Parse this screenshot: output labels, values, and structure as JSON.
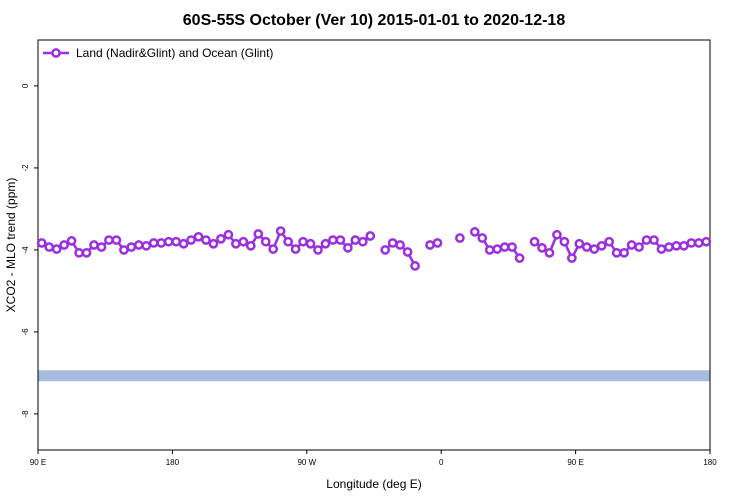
{
  "chart_data": {
    "type": "line",
    "title": "60S-55S October (Ver 10)   2015-01-01 to 2020-12-18",
    "x_label": "Longitude (deg E)",
    "y_label": "XCO2 - MLO trend (ppm)",
    "xlim": [
      90,
      540
    ],
    "xticks": [
      {
        "value": 90,
        "label": "90 E"
      },
      180,
      {
        "value": 270,
        "label": "90 W"
      },
      {
        "value": 360,
        "label": "0"
      },
      {
        "value": 450,
        "label": "90 E"
      },
      {
        "value": 540,
        "label": "180"
      }
    ],
    "ylim": [
      -8.88,
      1.12
    ],
    "yticks": [
      0,
      -2,
      -4,
      -6,
      -8
    ],
    "legend": "top-left",
    "x": [
      92.5,
      97.5,
      102.5,
      107.5,
      112.5,
      117.5,
      122.5,
      127.5,
      132.5,
      137.5,
      142.5,
      147.5,
      152.5,
      157.5,
      162.5,
      167.5,
      172.5,
      177.5,
      182.5,
      187.5,
      192.5,
      197.5,
      202.5,
      207.5,
      212.5,
      217.5,
      222.5,
      227.5,
      232.5,
      237.5,
      242.5,
      247.5,
      252.5,
      257.5,
      262.5,
      267.5,
      272.5,
      277.5,
      282.5,
      287.5,
      292.5,
      297.5,
      302.5,
      307.5,
      312.5,
      317.5,
      322.5,
      327.5,
      332.5,
      337.5,
      342.5,
      347.5,
      352.5,
      357.5,
      362.5,
      367.5,
      372.5,
      377.5,
      382.5,
      387.5,
      392.5,
      397.5,
      402.5,
      407.5,
      412.5,
      417.5,
      422.5,
      427.5,
      432.5,
      437.5,
      442.5,
      447.5,
      452.5,
      457.5,
      462.5,
      467.5,
      472.5,
      477.5,
      482.5,
      487.5,
      492.5,
      497.5,
      502.5,
      507.5,
      512.5,
      517.5,
      522.5,
      527.5,
      532.5,
      537.5
    ],
    "series": [
      {
        "name": "Land (Nadir&Glint) and Ocean (Glint)",
        "color": "#9b2ee0",
        "values": [
          -3.83,
          -3.93,
          -3.98,
          -3.88,
          -3.78,
          -4.07,
          -4.07,
          -3.88,
          -3.93,
          -3.76,
          -3.76,
          -4.0,
          -3.93,
          -3.88,
          -3.9,
          -3.83,
          -3.83,
          -3.8,
          -3.8,
          -3.85,
          -3.76,
          -3.68,
          -3.76,
          -3.85,
          -3.73,
          -3.63,
          -3.85,
          -3.8,
          -3.9,
          -3.61,
          -3.8,
          -3.98,
          -3.54,
          -3.8,
          -3.98,
          -3.8,
          -3.85,
          -4.0,
          -3.85,
          -3.76,
          -3.76,
          -3.95,
          -3.76,
          -3.8,
          -3.66,
          null,
          -4.0,
          -3.83,
          -3.88,
          -4.05,
          -4.39,
          null,
          -3.88,
          -3.83,
          null,
          null,
          -3.71,
          null,
          -3.56,
          -3.71,
          -4.0,
          -3.98,
          -3.93,
          -3.93,
          -4.2,
          null,
          -3.8,
          -3.95,
          -4.07,
          -3.63,
          -3.8,
          -4.2,
          -3.85,
          -3.93,
          -3.98,
          -3.9,
          -3.8,
          -4.07,
          -4.07,
          -3.88,
          -3.93,
          -3.76,
          -3.76,
          -3.98,
          -3.93,
          -3.9,
          -3.9,
          -3.83,
          -3.83,
          -3.8
        ]
      }
    ],
    "band": {
      "value": -7.07,
      "color": "#a7bcdd"
    }
  }
}
